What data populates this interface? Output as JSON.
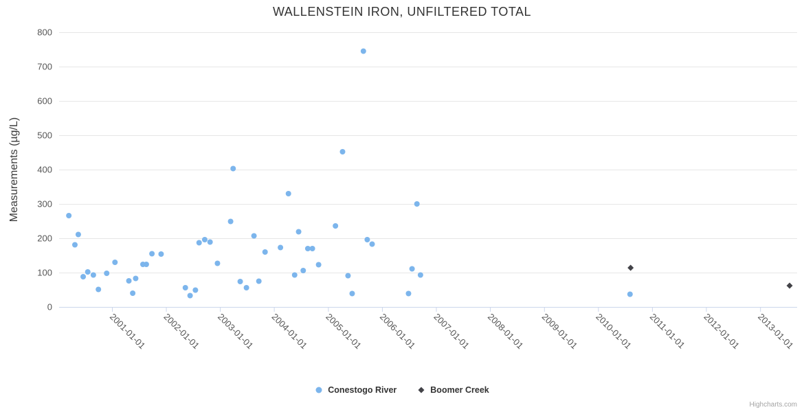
{
  "chart_data": {
    "type": "scatter",
    "title": "WALLENSTEIN IRON, UNFILTERED TOTAL",
    "xlabel": "",
    "ylabel": "Measurements (µg/L)",
    "ylim": [
      0,
      800
    ],
    "yticks": [
      0,
      100,
      200,
      300,
      400,
      500,
      600,
      700,
      800
    ],
    "xticks": [
      "2001-01-01",
      "2002-01-01",
      "2003-01-01",
      "2004-01-01",
      "2005-01-01",
      "2006-01-01",
      "2007-01-01",
      "2008-01-01",
      "2009-01-01",
      "2010-01-01",
      "2011-01-01",
      "2012-01-01",
      "2013-01-01"
    ],
    "grid": "horizontal",
    "legend_position": "bottom-center",
    "colors": {
      "grid": "#e6e6e6",
      "axis": "#ccd6eb",
      "title": "#333333",
      "axis_label": "#555555",
      "series1": "#7cb5ec",
      "series2": "#434348"
    },
    "series": [
      {
        "name": "Conestogo River",
        "marker": "circle",
        "color": "#7cb5ec",
        "points": [
          [
            "2000-03-15",
            266
          ],
          [
            "2000-04-25",
            181
          ],
          [
            "2000-05-18",
            211
          ],
          [
            "2000-06-20",
            88
          ],
          [
            "2000-07-21",
            102
          ],
          [
            "2000-08-28",
            93
          ],
          [
            "2000-10-01",
            51
          ],
          [
            "2000-11-26",
            98
          ],
          [
            "2001-01-21",
            130
          ],
          [
            "2001-04-25",
            76
          ],
          [
            "2001-05-21",
            40
          ],
          [
            "2001-06-10",
            83
          ],
          [
            "2001-07-29",
            124
          ],
          [
            "2001-08-21",
            124
          ],
          [
            "2001-09-28",
            155
          ],
          [
            "2001-11-29",
            154
          ],
          [
            "2002-05-12",
            56
          ],
          [
            "2002-06-13",
            33
          ],
          [
            "2002-07-19",
            49
          ],
          [
            "2002-08-13",
            187
          ],
          [
            "2002-09-20",
            196
          ],
          [
            "2002-10-26",
            189
          ],
          [
            "2002-12-15",
            127
          ],
          [
            "2003-03-14",
            249
          ],
          [
            "2003-03-31",
            403
          ],
          [
            "2003-05-18",
            74
          ],
          [
            "2003-06-29",
            56
          ],
          [
            "2003-08-19",
            207
          ],
          [
            "2003-09-21",
            75
          ],
          [
            "2003-11-02",
            160
          ],
          [
            "2004-02-14",
            173
          ],
          [
            "2004-04-08",
            330
          ],
          [
            "2004-05-20",
            93
          ],
          [
            "2004-06-16",
            219
          ],
          [
            "2004-07-17",
            106
          ],
          [
            "2004-08-17",
            170
          ],
          [
            "2004-09-17",
            170
          ],
          [
            "2004-10-29",
            123
          ],
          [
            "2005-02-20",
            236
          ],
          [
            "2005-04-09",
            452
          ],
          [
            "2005-05-16",
            91
          ],
          [
            "2005-06-13",
            39
          ],
          [
            "2005-08-28",
            745
          ],
          [
            "2005-09-23",
            196
          ],
          [
            "2005-10-26",
            183
          ],
          [
            "2006-06-29",
            39
          ],
          [
            "2006-07-23",
            111
          ],
          [
            "2006-08-25",
            300
          ],
          [
            "2006-09-18",
            93
          ],
          [
            "2010-08-05",
            37
          ]
        ]
      },
      {
        "name": "Boomer Creek",
        "marker": "diamond",
        "color": "#434348",
        "points": [
          [
            "2010-08-09",
            114
          ],
          [
            "2013-07-19",
            62
          ]
        ]
      }
    ],
    "credits": "Highcharts.com"
  }
}
